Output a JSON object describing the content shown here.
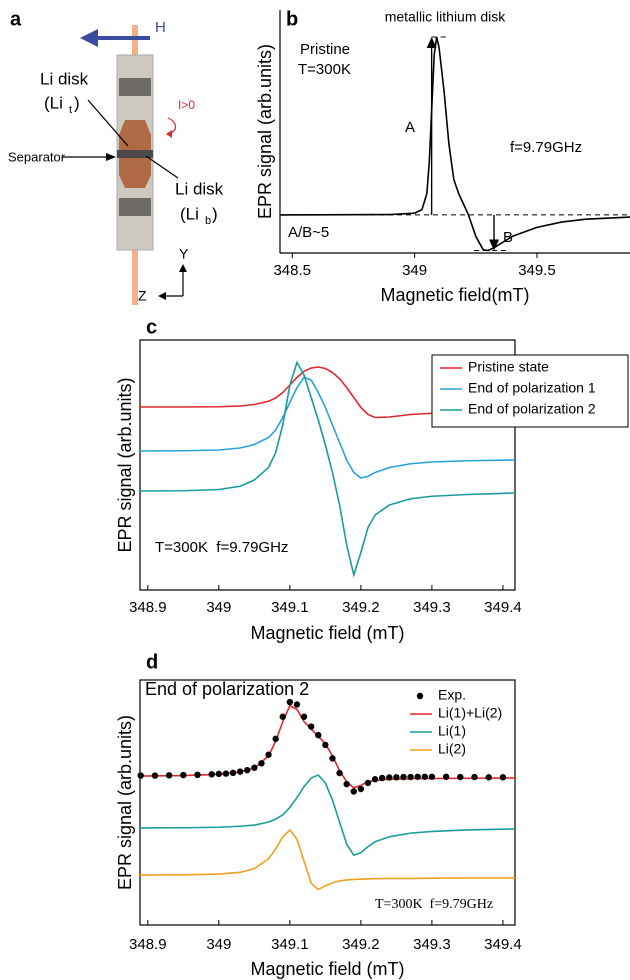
{
  "panel_a": {
    "label": "a",
    "field": "H",
    "current": "I>0",
    "separator": "Separator",
    "axis_y": "Y",
    "axis_z": "Z",
    "top_disk": {
      "name": "Li disk",
      "symbol_open": "(Li",
      "subscript": "t",
      "symbol_close": ")"
    },
    "bottom_disk": {
      "name": "Li disk",
      "symbol_open": "(Li",
      "subscript": "b",
      "symbol_close": ")"
    }
  },
  "chart_data": [
    {
      "type": "line",
      "panel_label": "b",
      "title": "metallic lithium disk",
      "xlabel": "Magnetic field(mT)",
      "ylabel": "EPR signal (arb.units)",
      "annotations": [
        "Pristine",
        "T=300K",
        "A",
        "f=9.79GHz",
        "A/B~5",
        "B"
      ],
      "x": [
        348.45,
        348.9,
        349.0,
        349.03,
        349.05,
        349.06,
        349.07,
        349.08,
        349.09,
        349.1,
        349.12,
        349.14,
        349.16,
        349.18,
        349.2,
        349.22,
        349.25,
        349.28,
        349.3,
        349.33,
        349.4,
        349.5,
        349.6,
        349.7,
        349.88
      ],
      "series": [
        {
          "color": "#000000",
          "values": [
            0,
            0.01,
            0.05,
            0.15,
            0.6,
            1.5,
            3.0,
            4.5,
            5.0,
            4.7,
            3.5,
            2.0,
            1.0,
            0.6,
            0.3,
            0,
            -0.6,
            -0.98,
            -1.0,
            -0.9,
            -0.6,
            -0.35,
            -0.2,
            -0.12,
            -0.06
          ]
        }
      ],
      "xlim": [
        348.45,
        349.88
      ],
      "ylim": [
        -1.07,
        5.76
      ],
      "xticks": [
        348.5,
        349,
        349.5
      ]
    },
    {
      "type": "line",
      "panel_label": "c",
      "xlabel": "Magnetic field (mT)",
      "ylabel": "EPR signal (arb.units)",
      "annotations": [
        "T=300K  f=9.79GHz"
      ],
      "x": [
        348.889,
        348.95,
        349.0,
        349.03,
        349.05,
        349.07,
        349.08,
        349.09,
        349.1,
        349.11,
        349.12,
        349.13,
        349.14,
        349.15,
        349.16,
        349.17,
        349.18,
        349.19,
        349.2,
        349.21,
        349.22,
        349.24,
        349.27,
        349.3,
        349.35,
        349.417
      ],
      "series": [
        {
          "name": "Pristine state",
          "color": "#e3262b",
          "values": [
            7.32,
            7.32,
            7.33,
            7.36,
            7.42,
            7.55,
            7.68,
            7.9,
            8.2,
            8.5,
            8.75,
            8.88,
            8.92,
            8.86,
            8.7,
            8.45,
            8.1,
            7.7,
            7.3,
            7.02,
            6.9,
            6.92,
            7.02,
            7.07,
            7.1,
            7.12
          ]
        },
        {
          "name": "End of polarization 1",
          "color": "#2aa1dc",
          "values": [
            5.56,
            5.57,
            5.6,
            5.68,
            5.82,
            6.1,
            6.4,
            6.9,
            7.5,
            8.1,
            8.5,
            8.4,
            7.9,
            7.3,
            6.6,
            5.9,
            5.2,
            4.7,
            4.48,
            4.55,
            4.7,
            4.9,
            5.05,
            5.12,
            5.17,
            5.2
          ]
        },
        {
          "name": "End of polarization 2",
          "color": "#1a9c9c",
          "values": [
            3.96,
            3.97,
            4.02,
            4.15,
            4.4,
            4.9,
            5.5,
            6.6,
            8.2,
            9.1,
            8.6,
            7.7,
            6.8,
            5.8,
            4.7,
            3.4,
            1.8,
            0.6,
            1.5,
            2.5,
            3.0,
            3.4,
            3.65,
            3.75,
            3.82,
            3.88
          ]
        }
      ],
      "xlim": [
        348.889,
        349.417
      ],
      "ylim": [
        0,
        10
      ],
      "xticks": [
        348.9,
        349,
        349.1,
        349.2,
        349.3,
        349.4
      ],
      "legend": "upper right"
    },
    {
      "type": "line",
      "panel_label": "d",
      "xlabel": "Magnetic field (mT)",
      "ylabel": "EPR signal (arb.units)",
      "annotations": [
        "End of polarization 2",
        "T=300K  f=9.79GHz"
      ],
      "x": [
        348.889,
        348.95,
        349.0,
        349.03,
        349.05,
        349.07,
        349.08,
        349.09,
        349.1,
        349.11,
        349.12,
        349.13,
        349.14,
        349.15,
        349.16,
        349.17,
        349.18,
        349.19,
        349.2,
        349.21,
        349.22,
        349.24,
        349.27,
        349.3,
        349.35,
        349.417
      ],
      "series": [
        {
          "name": "Exp.",
          "color": "#000000",
          "marker": "dot",
          "x": [
            348.89,
            348.91,
            348.93,
            348.95,
            348.97,
            348.99,
            349.0,
            349.01,
            349.02,
            349.03,
            349.04,
            349.05,
            349.06,
            349.07,
            349.08,
            349.09,
            349.1,
            349.11,
            349.12,
            349.13,
            349.14,
            349.15,
            349.16,
            349.17,
            349.18,
            349.19,
            349.2,
            349.21,
            349.22,
            349.23,
            349.24,
            349.25,
            349.26,
            349.27,
            349.28,
            349.29,
            349.3,
            349.32,
            349.34,
            349.36,
            349.38,
            349.4
          ],
          "values": [
            6.1,
            6.1,
            6.11,
            6.12,
            6.13,
            6.15,
            6.17,
            6.18,
            6.21,
            6.26,
            6.32,
            6.42,
            6.6,
            6.95,
            7.6,
            8.5,
            9.1,
            9.0,
            8.5,
            8.1,
            7.75,
            7.35,
            6.8,
            6.2,
            5.75,
            5.45,
            5.55,
            5.8,
            5.95,
            6.0,
            6.02,
            6.03,
            6.04,
            6.04,
            6.05,
            6.05,
            6.05,
            6.05,
            6.04,
            6.04,
            6.03,
            6.03
          ]
        },
        {
          "name": "Li(1)+Li(2)",
          "color": "#e3262b",
          "values": [
            6.08,
            6.1,
            6.15,
            6.25,
            6.4,
            6.9,
            7.5,
            8.3,
            8.95,
            8.8,
            8.3,
            8.0,
            7.7,
            7.4,
            6.9,
            6.3,
            5.85,
            5.6,
            5.7,
            5.85,
            5.9,
            5.95,
            5.97,
            5.98,
            5.99,
            6.0
          ]
        },
        {
          "name": "Li(1)",
          "color": "#1a9c9c",
          "values": [
            3.96,
            3.97,
            3.99,
            4.03,
            4.08,
            4.2,
            4.32,
            4.5,
            4.8,
            5.2,
            5.65,
            6.0,
            6.12,
            5.8,
            5.1,
            4.2,
            3.3,
            2.85,
            2.95,
            3.2,
            3.4,
            3.6,
            3.75,
            3.82,
            3.88,
            3.92
          ]
        },
        {
          "name": "Li(2)",
          "color": "#f0a020",
          "values": [
            2.04,
            2.05,
            2.08,
            2.15,
            2.3,
            2.7,
            3.1,
            3.6,
            3.88,
            3.5,
            2.6,
            1.7,
            1.45,
            1.6,
            1.72,
            1.8,
            1.84,
            1.86,
            1.87,
            1.88,
            1.89,
            1.9,
            1.9,
            1.91,
            1.92,
            1.92
          ]
        }
      ],
      "xlim": [
        348.889,
        349.417
      ],
      "ylim": [
        0,
        10
      ],
      "xticks": [
        348.9,
        349,
        349.1,
        349.2,
        349.3,
        349.4
      ],
      "legend": "upper right"
    }
  ]
}
